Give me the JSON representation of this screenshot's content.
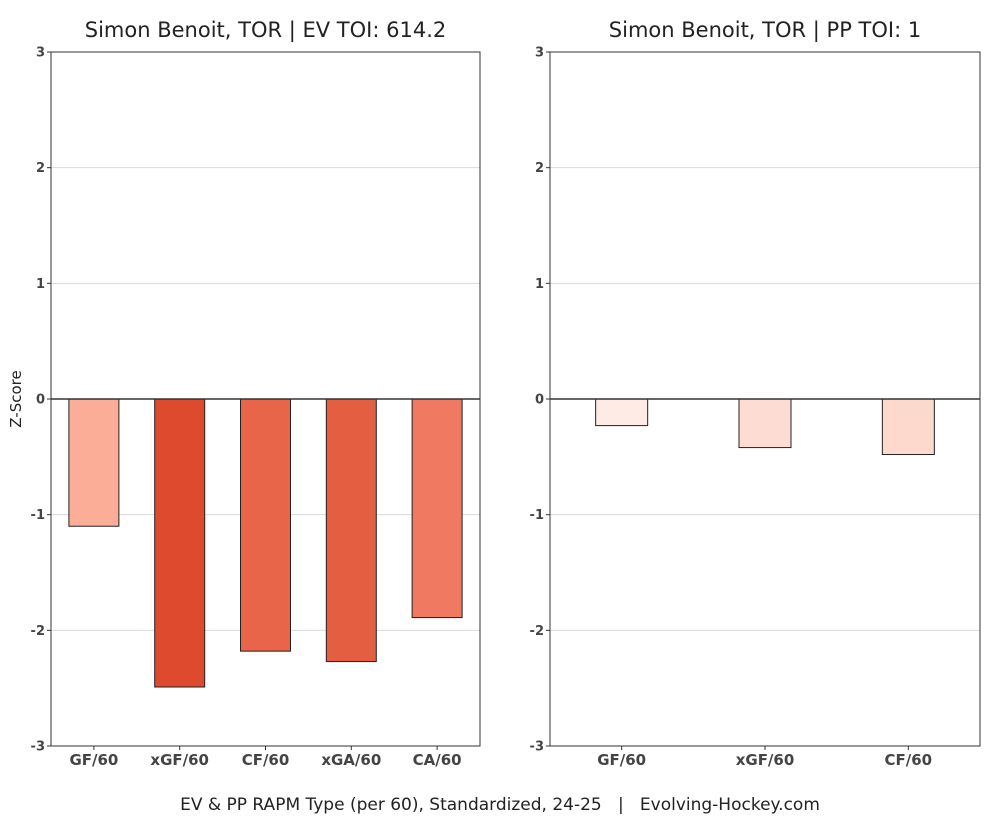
{
  "footer": "EV & PP RAPM Type (per 60), Standardized, 24-25   |   Evolving-Hockey.com",
  "ylabel": "Z-Score",
  "chart_data": [
    {
      "type": "bar",
      "title": "Simon Benoit, TOR  |  EV TOI: 614.2",
      "categories": [
        "GF/60",
        "xGF/60",
        "CF/60",
        "xGA/60",
        "CA/60"
      ],
      "values": [
        -1.1,
        -2.49,
        -2.18,
        -2.27,
        -1.89
      ],
      "colors": [
        "#fcad98",
        "#dd4a2e",
        "#e8654a",
        "#e45e42",
        "#ef7961"
      ],
      "ylim": [
        -3,
        3
      ],
      "yticks": [
        -3,
        -2,
        -1,
        0,
        1,
        2,
        3
      ],
      "ylabel": "Z-Score",
      "grid": true
    },
    {
      "type": "bar",
      "title": "Simon Benoit, TOR  |  PP TOI: 1",
      "categories": [
        "GF/60",
        "xGF/60",
        "CF/60"
      ],
      "values": [
        -0.23,
        -0.42,
        -0.48
      ],
      "colors": [
        "#feebe6",
        "#fddcd3",
        "#fdd8cd"
      ],
      "ylim": [
        -3,
        3
      ],
      "yticks": [
        -3,
        -2,
        -1,
        0,
        1,
        2,
        3
      ],
      "ylabel": "",
      "grid": true
    }
  ]
}
